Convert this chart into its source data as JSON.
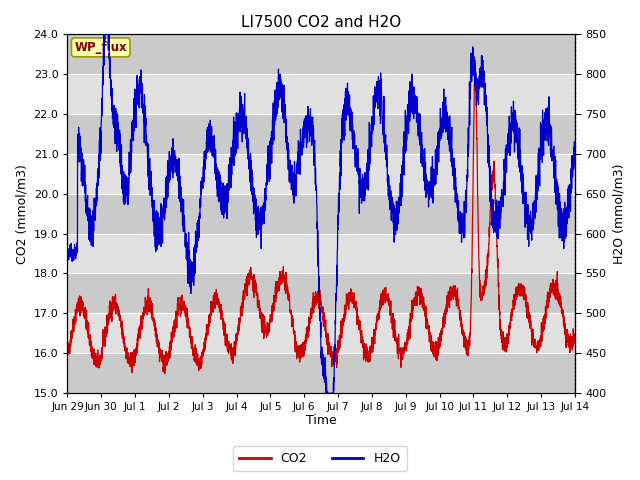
{
  "title": "LI7500 CO2 and H2O",
  "xlabel": "Time",
  "ylabel_left": "CO2 (mmol/m3)",
  "ylabel_right": "H2O (mmol/m3)",
  "ylim_left": [
    15.0,
    24.0
  ],
  "ylim_right": [
    400,
    850
  ],
  "annotation_text": "WP_flux",
  "legend_co2": "CO2",
  "legend_h2o": "H2O",
  "co2_color": "#cc0000",
  "h2o_color": "#0000cc",
  "background_color": "#ffffff",
  "plot_bg_color": "#e0e0e0",
  "stripe_color": "#cacaca",
  "grid_color": "#ffffff",
  "tick_labels": [
    "Jun 29",
    "Jun 30",
    "Jul 1",
    "Jul 2",
    "Jul 3",
    "Jul 4",
    "Jul 5",
    "Jul 6",
    "Jul 7",
    "Jul 8",
    "Jul 9",
    "Jul 10",
    "Jul 11",
    "Jul 12",
    "Jul 13",
    "Jul 14"
  ],
  "right_ticks": [
    400,
    450,
    500,
    550,
    600,
    650,
    700,
    750,
    800,
    850
  ],
  "left_ticks": [
    15.0,
    16.0,
    17.0,
    18.0,
    19.0,
    20.0,
    21.0,
    22.0,
    23.0,
    24.0
  ]
}
